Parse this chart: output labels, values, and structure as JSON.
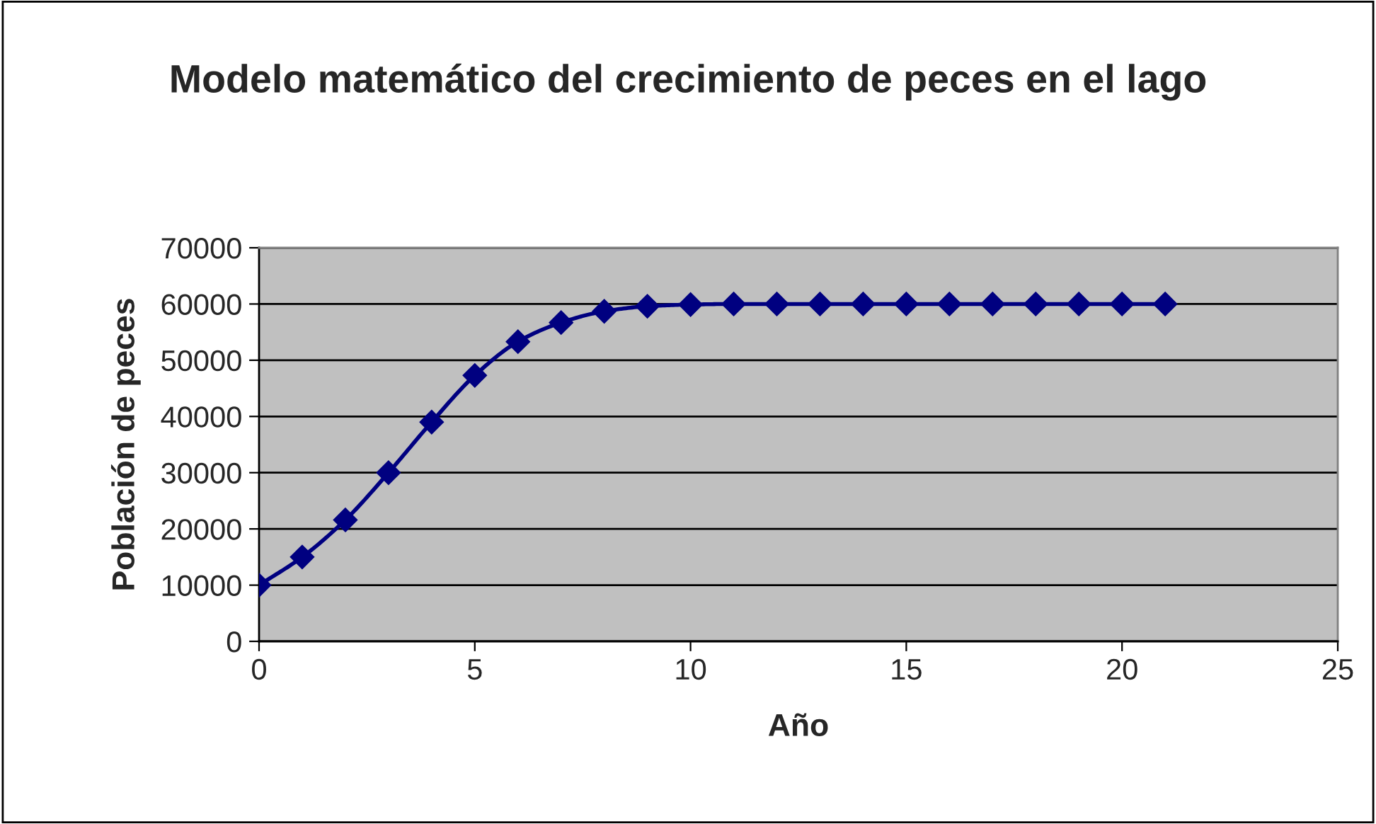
{
  "chart_data": {
    "type": "line",
    "title": "Modelo matemático del crecimiento de peces en el lago",
    "xlabel": "Año",
    "ylabel": "Población de peces",
    "x": [
      0,
      1,
      2,
      3,
      4,
      5,
      6,
      7,
      8,
      9,
      10,
      11,
      12,
      13,
      14,
      15,
      16,
      17,
      18,
      19,
      20,
      21
    ],
    "series": [
      {
        "color": "#000080",
        "values": [
          10000,
          15000,
          21600,
          30000,
          39000,
          47300,
          53300,
          56700,
          58700,
          59600,
          59900,
          60000,
          60000,
          60000,
          60000,
          60000,
          60000,
          60000,
          60000,
          60000,
          60000,
          60000
        ]
      }
    ],
    "xlim": [
      0,
      25
    ],
    "xticks": [
      0,
      5,
      10,
      15,
      20,
      25
    ],
    "ylim": [
      0,
      70000
    ],
    "yticks": [
      0,
      10000,
      20000,
      30000,
      40000,
      50000,
      60000,
      70000
    ],
    "grid": "y",
    "marker": "diamond",
    "line_style": "solid",
    "legend": false
  }
}
